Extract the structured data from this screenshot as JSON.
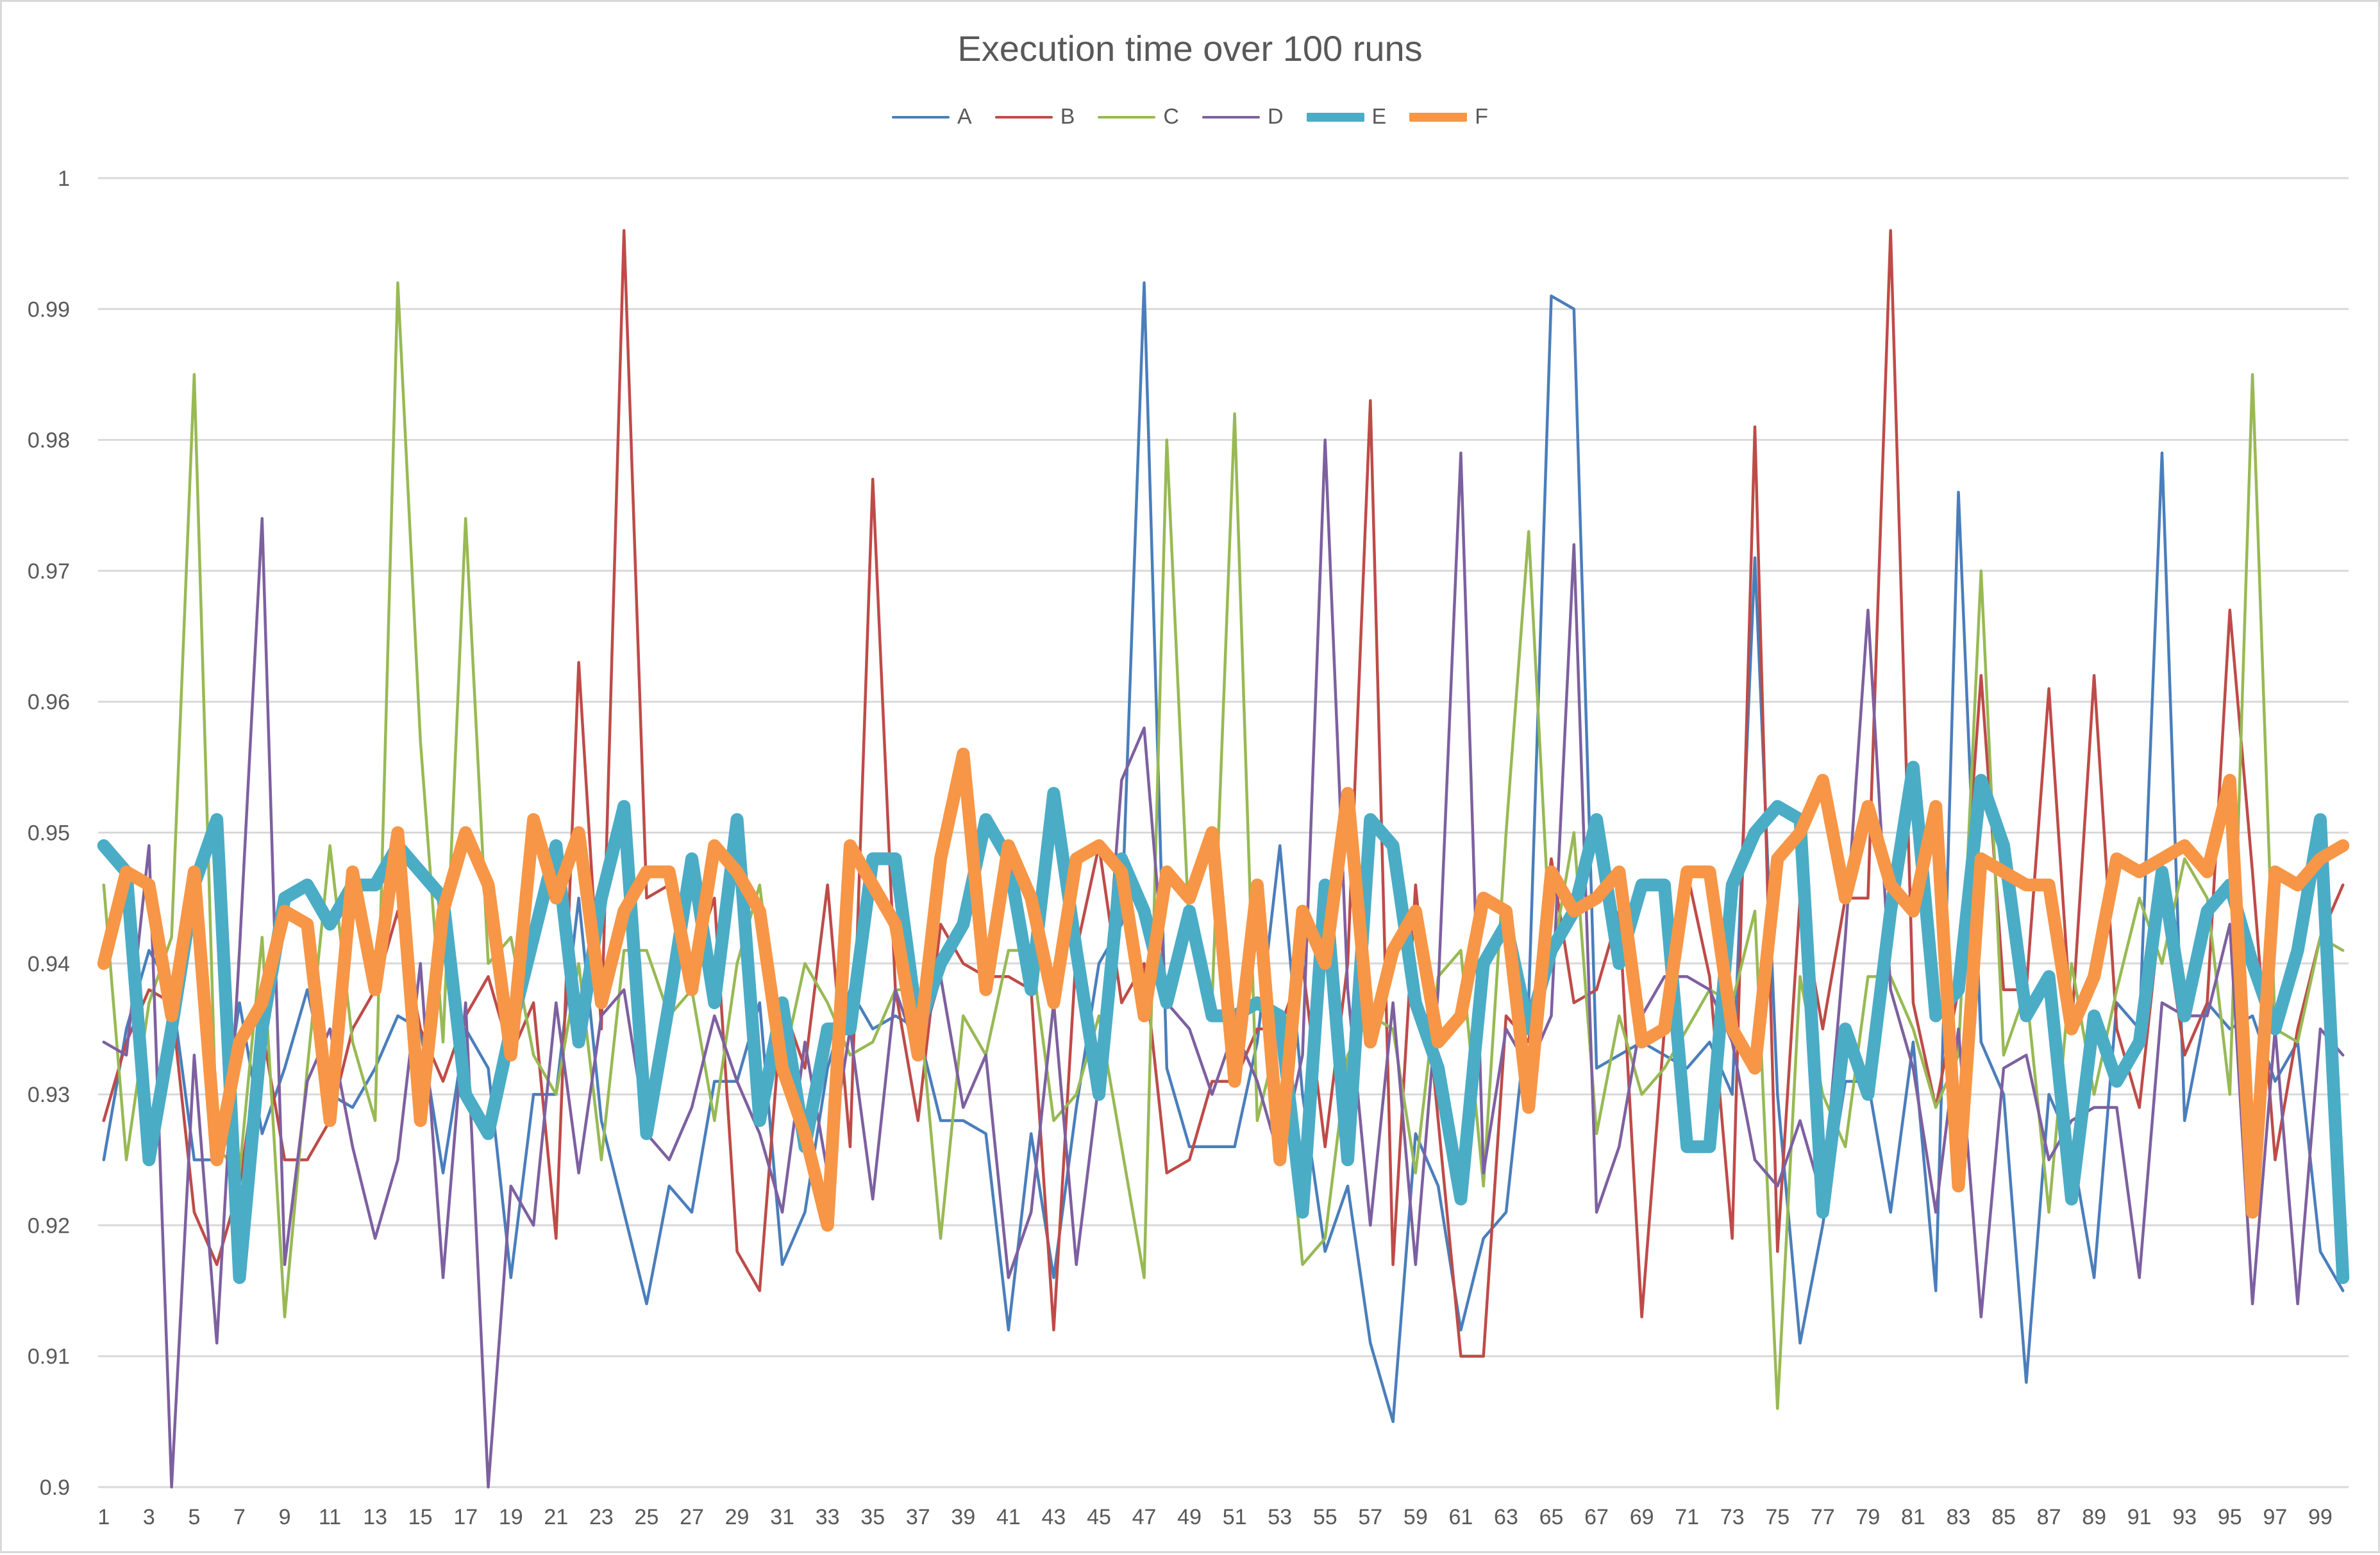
{
  "chart_data": {
    "type": "line",
    "title": "Execution time over 100 runs",
    "xlabel": "",
    "ylabel": "",
    "ylim": [
      0.9,
      1.0
    ],
    "yticks": [
      0.9,
      0.91,
      0.92,
      0.93,
      0.94,
      0.95,
      0.96,
      0.97,
      0.98,
      0.99,
      1
    ],
    "ytick_labels": [
      "0.9",
      "0.91",
      "0.92",
      "0.93",
      "0.94",
      "0.95",
      "0.96",
      "0.97",
      "0.98",
      "0.99",
      "1"
    ],
    "xtick_labels": [
      "1",
      "3",
      "5",
      "7",
      "9",
      "11",
      "13",
      "15",
      "17",
      "19",
      "21",
      "23",
      "25",
      "27",
      "29",
      "31",
      "33",
      "35",
      "37",
      "39",
      "41",
      "43",
      "45",
      "47",
      "49",
      "51",
      "53",
      "55",
      "57",
      "59",
      "61",
      "63",
      "65",
      "67",
      "69",
      "71",
      "73",
      "75",
      "77",
      "79",
      "81",
      "83",
      "85",
      "87",
      "89",
      "91",
      "93",
      "95",
      "97",
      "99"
    ],
    "x": [
      1,
      2,
      3,
      4,
      5,
      6,
      7,
      8,
      9,
      10,
      11,
      12,
      13,
      14,
      15,
      16,
      17,
      18,
      19,
      20,
      21,
      22,
      23,
      24,
      25,
      26,
      27,
      28,
      29,
      30,
      31,
      32,
      33,
      34,
      35,
      36,
      37,
      38,
      39,
      40,
      41,
      42,
      43,
      44,
      45,
      46,
      47,
      48,
      49,
      50,
      51,
      52,
      53,
      54,
      55,
      56,
      57,
      58,
      59,
      60,
      61,
      62,
      63,
      64,
      65,
      66,
      67,
      68,
      69,
      70,
      71,
      72,
      73,
      74,
      75,
      76,
      77,
      78,
      79,
      80,
      81,
      82,
      83,
      84,
      85,
      86,
      87,
      88,
      89,
      90,
      91,
      92,
      93,
      94,
      95,
      96,
      97,
      98,
      99,
      100
    ],
    "grid": true,
    "legend_position": "top",
    "series": [
      {
        "name": "A",
        "color": "#4a7ebb",
        "width": "thin",
        "values": [
          0.925,
          0.935,
          0.941,
          0.938,
          0.925,
          0.925,
          0.937,
          0.927,
          0.932,
          0.938,
          0.93,
          0.929,
          0.932,
          0.936,
          0.935,
          0.924,
          0.935,
          0.932,
          0.916,
          0.93,
          0.93,
          0.945,
          0.928,
          0.921,
          0.914,
          0.923,
          0.921,
          0.931,
          0.931,
          0.937,
          0.917,
          0.921,
          0.932,
          0.938,
          0.935,
          0.936,
          0.935,
          0.928,
          0.928,
          0.927,
          0.912,
          0.927,
          0.916,
          0.929,
          0.94,
          0.943,
          0.992,
          0.932,
          0.926,
          0.926,
          0.926,
          0.934,
          0.949,
          0.93,
          0.918,
          0.923,
          0.911,
          0.905,
          0.927,
          0.923,
          0.912,
          0.919,
          0.921,
          0.937,
          0.991,
          0.99,
          0.932,
          0.933,
          0.934,
          0.933,
          0.932,
          0.934,
          0.93,
          0.971,
          0.93,
          0.911,
          0.92,
          0.931,
          0.931,
          0.921,
          0.934,
          0.915,
          0.976,
          0.934,
          0.93,
          0.908,
          0.93,
          0.926,
          0.916,
          0.937,
          0.935,
          0.979,
          0.928,
          0.937,
          0.935,
          0.936,
          0.931,
          0.934,
          0.918,
          0.915
        ]
      },
      {
        "name": "B",
        "color": "#be4b48",
        "width": "thin",
        "values": [
          0.928,
          0.934,
          0.938,
          0.937,
          0.921,
          0.917,
          0.923,
          0.935,
          0.925,
          0.925,
          0.928,
          0.935,
          0.938,
          0.944,
          0.935,
          0.931,
          0.936,
          0.939,
          0.933,
          0.937,
          0.919,
          0.963,
          0.935,
          0.996,
          0.945,
          0.946,
          0.94,
          0.945,
          0.918,
          0.915,
          0.937,
          0.932,
          0.946,
          0.926,
          0.977,
          0.938,
          0.928,
          0.943,
          0.94,
          0.939,
          0.939,
          0.938,
          0.912,
          0.941,
          0.949,
          0.937,
          0.94,
          0.924,
          0.925,
          0.931,
          0.931,
          0.935,
          0.935,
          0.94,
          0.926,
          0.94,
          0.983,
          0.917,
          0.946,
          0.928,
          0.91,
          0.91,
          0.936,
          0.934,
          0.948,
          0.937,
          0.938,
          0.944,
          0.913,
          0.935,
          0.947,
          0.939,
          0.919,
          0.981,
          0.918,
          0.945,
          0.935,
          0.945,
          0.945,
          0.996,
          0.937,
          0.929,
          0.938,
          0.962,
          0.938,
          0.938,
          0.961,
          0.935,
          0.962,
          0.935,
          0.929,
          0.945,
          0.933,
          0.937,
          0.967,
          0.947,
          0.925,
          0.935,
          0.942,
          0.946
        ]
      },
      {
        "name": "C",
        "color": "#98b954",
        "width": "thin",
        "values": [
          0.946,
          0.925,
          0.937,
          0.942,
          0.985,
          0.926,
          0.924,
          0.942,
          0.913,
          0.932,
          0.949,
          0.934,
          0.928,
          0.992,
          0.957,
          0.934,
          0.974,
          0.94,
          0.942,
          0.933,
          0.93,
          0.94,
          0.925,
          0.941,
          0.941,
          0.936,
          0.938,
          0.928,
          0.94,
          0.946,
          0.932,
          0.94,
          0.937,
          0.933,
          0.934,
          0.938,
          0.938,
          0.919,
          0.936,
          0.933,
          0.941,
          0.941,
          0.928,
          0.93,
          0.936,
          0.926,
          0.916,
          0.98,
          0.942,
          0.937,
          0.982,
          0.928,
          0.935,
          0.917,
          0.919,
          0.933,
          0.936,
          0.935,
          0.924,
          0.939,
          0.941,
          0.923,
          0.95,
          0.973,
          0.94,
          0.95,
          0.927,
          0.936,
          0.93,
          0.932,
          0.935,
          0.938,
          0.937,
          0.944,
          0.906,
          0.939,
          0.93,
          0.926,
          0.939,
          0.939,
          0.935,
          0.929,
          0.933,
          0.97,
          0.933,
          0.938,
          0.921,
          0.94,
          0.93,
          0.938,
          0.945,
          0.94,
          0.948,
          0.945,
          0.93,
          0.985,
          0.935,
          0.934,
          0.942,
          0.941
        ]
      },
      {
        "name": "D",
        "color": "#7d60a0",
        "width": "thin",
        "values": [
          0.934,
          0.933,
          0.949,
          0.9,
          0.933,
          0.911,
          0.941,
          0.974,
          0.917,
          0.931,
          0.935,
          0.926,
          0.919,
          0.925,
          0.94,
          0.916,
          0.937,
          0.9,
          0.923,
          0.92,
          0.937,
          0.924,
          0.936,
          0.938,
          0.927,
          0.925,
          0.929,
          0.936,
          0.931,
          0.927,
          0.921,
          0.934,
          0.924,
          0.935,
          0.922,
          0.938,
          0.933,
          0.939,
          0.929,
          0.933,
          0.916,
          0.921,
          0.937,
          0.917,
          0.931,
          0.954,
          0.958,
          0.937,
          0.935,
          0.93,
          0.935,
          0.931,
          0.925,
          0.933,
          0.98,
          0.938,
          0.92,
          0.937,
          0.917,
          0.938,
          0.979,
          0.924,
          0.935,
          0.932,
          0.936,
          0.972,
          0.921,
          0.926,
          0.936,
          0.939,
          0.939,
          0.938,
          0.934,
          0.925,
          0.923,
          0.928,
          0.922,
          0.942,
          0.967,
          0.938,
          0.932,
          0.921,
          0.935,
          0.913,
          0.932,
          0.933,
          0.925,
          0.928,
          0.929,
          0.929,
          0.916,
          0.937,
          0.936,
          0.936,
          0.943,
          0.914,
          0.935,
          0.914,
          0.935,
          0.933
        ]
      },
      {
        "name": "E",
        "color": "#4bacc6",
        "width": "thick",
        "values": [
          0.949,
          0.947,
          0.925,
          0.935,
          0.946,
          0.951,
          0.916,
          0.935,
          0.945,
          0.946,
          0.943,
          0.946,
          0.946,
          0.949,
          0.947,
          0.945,
          0.93,
          0.927,
          0.935,
          0.942,
          0.949,
          0.934,
          0.945,
          0.952,
          0.927,
          0.937,
          0.948,
          0.937,
          0.951,
          0.928,
          0.937,
          0.926,
          0.935,
          0.935,
          0.948,
          0.948,
          0.935,
          0.94,
          0.943,
          0.951,
          0.948,
          0.938,
          0.953,
          0.941,
          0.93,
          0.948,
          0.944,
          0.937,
          0.944,
          0.936,
          0.936,
          0.937,
          0.936,
          0.921,
          0.946,
          0.925,
          0.951,
          0.949,
          0.937,
          0.932,
          0.922,
          0.94,
          0.943,
          0.935,
          0.941,
          0.944,
          0.951,
          0.94,
          0.946,
          0.946,
          0.926,
          0.926,
          0.946,
          0.95,
          0.952,
          0.951,
          0.921,
          0.935,
          0.93,
          0.944,
          0.955,
          0.936,
          0.938,
          0.954,
          0.949,
          0.936,
          0.939,
          0.922,
          0.936,
          0.931,
          0.934,
          0.947,
          0.936,
          0.944,
          0.946,
          0.94,
          0.935,
          0.941,
          0.951,
          0.916
        ]
      },
      {
        "name": "F",
        "color": "#f79646",
        "width": "thick",
        "values": [
          0.94,
          0.947,
          0.946,
          0.936,
          0.947,
          0.925,
          0.934,
          0.937,
          0.944,
          0.943,
          0.928,
          0.947,
          0.938,
          0.95,
          0.928,
          0.944,
          0.95,
          0.946,
          0.933,
          0.951,
          0.945,
          0.95,
          0.937,
          0.944,
          0.947,
          0.947,
          0.938,
          0.949,
          0.947,
          0.944,
          0.932,
          0.927,
          0.92,
          0.949,
          0.946,
          0.943,
          0.933,
          0.948,
          0.956,
          0.938,
          0.949,
          0.945,
          0.937,
          0.948,
          0.949,
          0.947,
          0.936,
          0.947,
          0.945,
          0.95,
          0.931,
          0.946,
          0.925,
          0.944,
          0.94,
          0.953,
          0.934,
          0.941,
          0.944,
          0.934,
          0.936,
          0.945,
          0.944,
          0.929,
          0.947,
          0.944,
          0.945,
          0.947,
          0.934,
          0.935,
          0.947,
          0.947,
          0.935,
          0.932,
          0.948,
          0.95,
          0.954,
          0.945,
          0.952,
          0.946,
          0.944,
          0.952,
          0.923,
          0.948,
          0.947,
          0.946,
          0.946,
          0.935,
          0.939,
          0.948,
          0.947,
          0.948,
          0.949,
          0.947,
          0.954,
          0.921,
          0.947,
          0.946,
          0.948,
          0.949
        ]
      }
    ]
  }
}
